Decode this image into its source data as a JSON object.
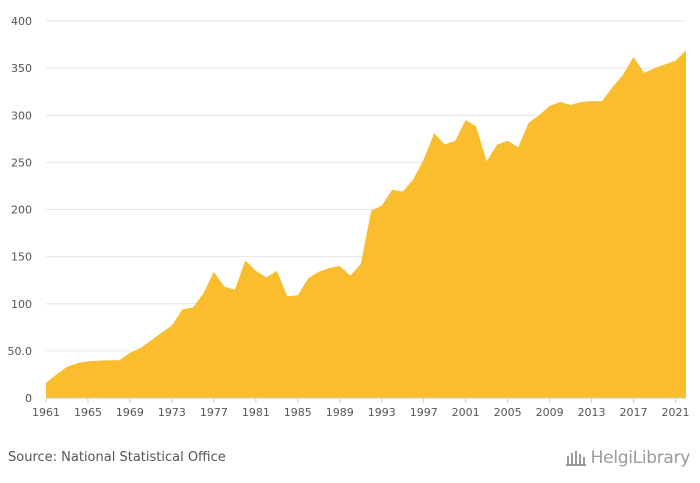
{
  "chart_data": {
    "type": "area",
    "x": [
      1961,
      1962,
      1963,
      1964,
      1965,
      1966,
      1967,
      1968,
      1969,
      1970,
      1971,
      1972,
      1973,
      1974,
      1975,
      1976,
      1977,
      1978,
      1979,
      1980,
      1981,
      1982,
      1983,
      1984,
      1985,
      1986,
      1987,
      1988,
      1989,
      1990,
      1991,
      1992,
      1993,
      1994,
      1995,
      1996,
      1997,
      1998,
      1999,
      2000,
      2001,
      2002,
      2003,
      2004,
      2005,
      2006,
      2007,
      2008,
      2009,
      2010,
      2011,
      2012,
      2013,
      2014,
      2015,
      2016,
      2017,
      2018,
      2019,
      2020,
      2021,
      2022
    ],
    "series": [
      {
        "values": [
          16,
          25,
          33,
          37,
          39,
          39.5,
          40,
          40,
          48,
          53,
          61,
          69,
          77,
          94,
          96,
          111,
          134,
          118,
          115,
          146,
          135,
          128,
          135,
          108,
          109,
          127,
          134,
          138,
          140,
          130,
          142,
          199,
          204,
          221,
          219,
          232,
          253,
          281,
          269,
          273,
          295,
          288,
          251,
          269,
          273,
          266,
          292,
          300,
          310,
          314,
          311,
          314,
          315,
          315,
          330,
          343,
          362,
          345,
          350,
          354,
          358,
          369
        ],
        "color": "#f9bd2d"
      }
    ],
    "xticks": [
      "1961",
      "1965",
      "1969",
      "1973",
      "1977",
      "1981",
      "1985",
      "1989",
      "1993",
      "1997",
      "2001",
      "2005",
      "2009",
      "2013",
      "2017",
      "2021"
    ],
    "yticks": [
      "0",
      "50.0",
      "100",
      "150",
      "200",
      "250",
      "300",
      "350",
      "400"
    ],
    "ylim": [
      0,
      400
    ],
    "xlim": [
      1961,
      2022
    ],
    "grid": true,
    "title": "",
    "xlabel": "",
    "ylabel": ""
  },
  "footer": {
    "source": "Source: National Statistical Office",
    "logo_text": "HelgiLibrary"
  }
}
